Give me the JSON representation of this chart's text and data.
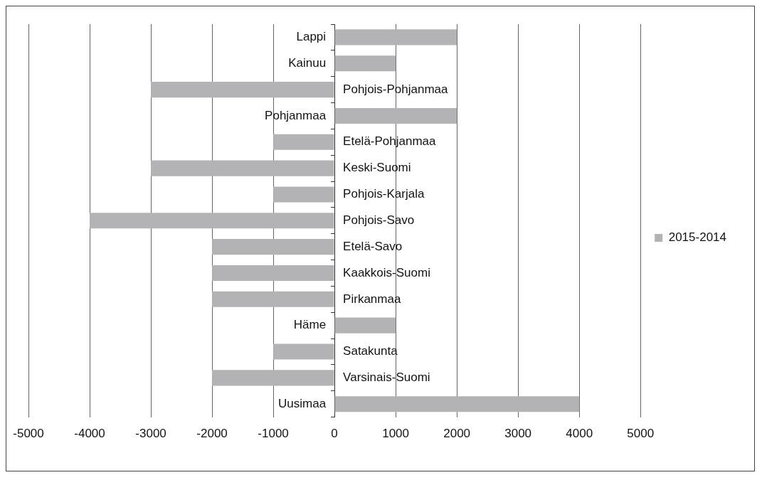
{
  "chart_data": {
    "type": "bar",
    "orientation": "horizontal",
    "categories": [
      "Lappi",
      "Kainuu",
      "Pohjois-Pohjanmaa",
      "Pohjanmaa",
      "Etelä-Pohjanmaa",
      "Keski-Suomi",
      "Pohjois-Karjala",
      "Pohjois-Savo",
      "Etelä-Savo",
      "Kaakkois-Suomi",
      "Pirkanmaa",
      "Häme",
      "Satakunta",
      "Varsinais-Suomi",
      "Uusimaa"
    ],
    "series": [
      {
        "name": "2015-2014",
        "color": "#b3b3b5",
        "values": [
          2000,
          1000,
          -3000,
          2000,
          -1000,
          -3000,
          -1000,
          -4000,
          -2000,
          -2000,
          -2000,
          1000,
          -1000,
          -2000,
          4000
        ]
      }
    ],
    "xlim": [
      -5000,
      5000
    ],
    "xticks": [
      -5000,
      -4000,
      -3000,
      -2000,
      -1000,
      0,
      1000,
      2000,
      3000,
      4000,
      5000
    ],
    "grid": "x",
    "legend": "right"
  }
}
